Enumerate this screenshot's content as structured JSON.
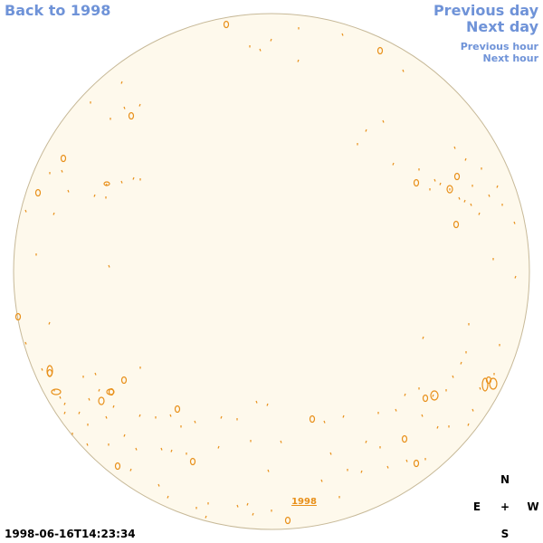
{
  "nav": {
    "back": "Back to 1998",
    "previous_day": "Previous day",
    "next_day": "Next day",
    "previous_hour": "Previous hour",
    "next_hour": "Next hour"
  },
  "year_link": "1998",
  "timestamp": "1998-06-16T14:23:34",
  "compass": {
    "north": "N",
    "east": "E",
    "center": "+",
    "west": "W",
    "south": "S"
  },
  "colors": {
    "disk_fill": "#fef9ec",
    "disk_border": "#c7b998",
    "contour": "#e8901a",
    "link": "#6f93d8"
  }
}
